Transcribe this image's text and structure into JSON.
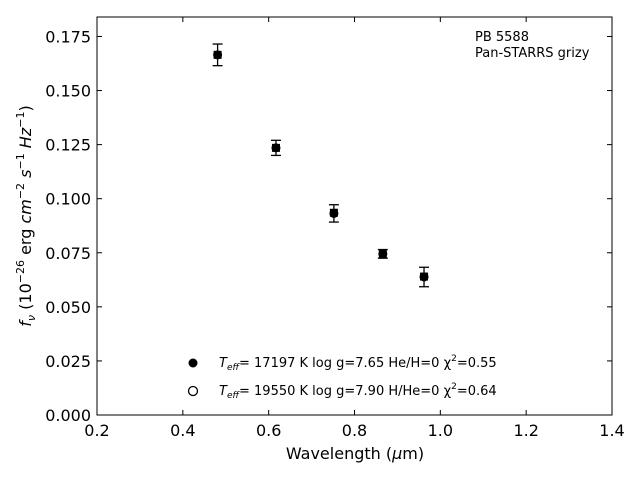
{
  "chart_data": {
    "type": "scatter",
    "annotation": [
      "PB 5588",
      "Pan-STARRS grizy"
    ],
    "xlabel": "Wavelength (μm)",
    "ylabel": "f_ν (10^-26 erg cm^-2 s^-1 Hz^-1)",
    "xlim": [
      0.2,
      1.4
    ],
    "ylim": [
      0.0,
      0.184
    ],
    "xticks": [
      "0.2",
      "0.4",
      "0.6",
      "0.8",
      "1.0",
      "1.2",
      "1.4"
    ],
    "yticks": [
      "0.000",
      "0.025",
      "0.050",
      "0.075",
      "0.100",
      "0.125",
      "0.150",
      "0.175"
    ],
    "grid": false,
    "legend_position": "bottom-center",
    "observed": {
      "x": [
        0.481,
        0.617,
        0.752,
        0.866,
        0.962
      ],
      "y": [
        0.1665,
        0.1235,
        0.0932,
        0.0745,
        0.0638
      ],
      "y_err": [
        0.005,
        0.0035,
        0.004,
        0.002,
        0.0045
      ]
    },
    "series": [
      {
        "name": "Teff= 17197 K  log g=7.65  He/H=0  χ2=0.55",
        "marker": "filled-circle",
        "x": [
          0.481,
          0.617,
          0.752,
          0.866,
          0.962
        ],
        "y": [
          0.1665,
          0.1235,
          0.0935,
          0.0745,
          0.064
        ]
      },
      {
        "name": "Teff= 19550 K  log g=7.90  H/He=0  χ2=0.64",
        "marker": "open-circle",
        "x": [
          0.481,
          0.617,
          0.752,
          0.866,
          0.962
        ],
        "y": [
          0.1665,
          0.1235,
          0.0935,
          0.0745,
          0.064
        ]
      }
    ],
    "legend": [
      {
        "marker": "filled-circle",
        "prefix": "T",
        "sub": "eff",
        "mid": "= 17197 K  log g=7.65  He/H=0  χ",
        "sup": "2",
        "suffix": "=0.55"
      },
      {
        "marker": "open-circle",
        "prefix": "T",
        "sub": "eff",
        "mid": "= 19550 K  log g=7.90  H/He=0  χ",
        "sup": "2",
        "suffix": "=0.64"
      }
    ],
    "colors": {
      "marker": "#000000",
      "axis": "#000000"
    }
  }
}
